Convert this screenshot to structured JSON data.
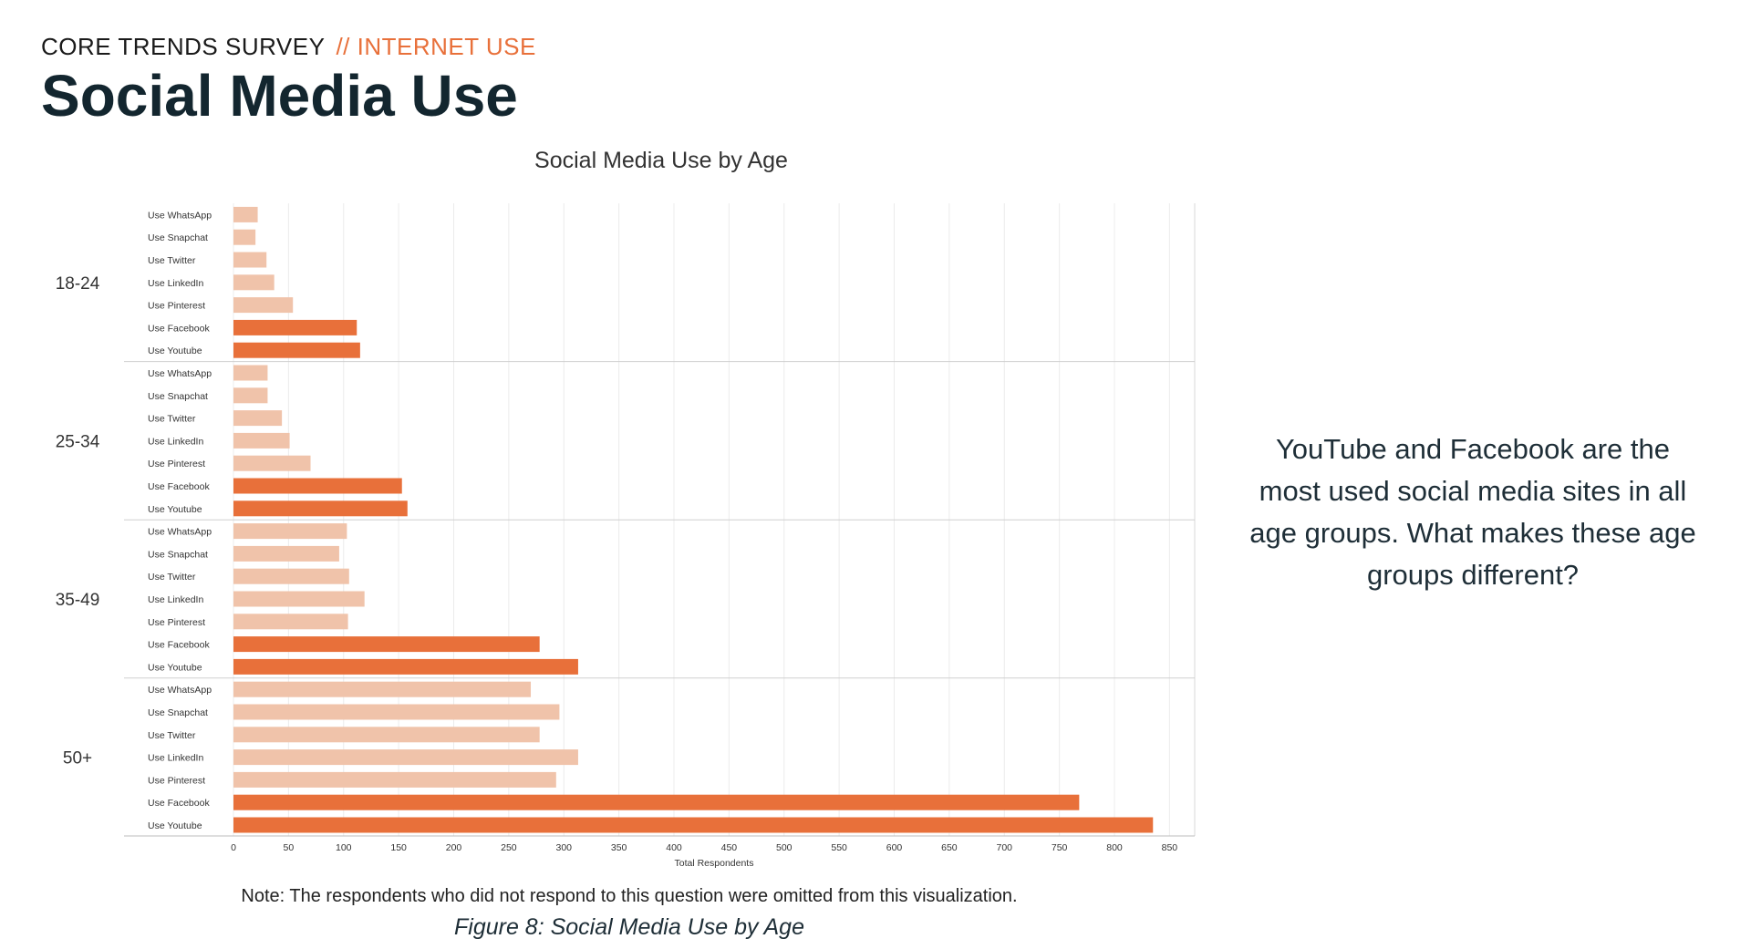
{
  "header": {
    "supertitle_main": "CORE TRENDS SURVEY",
    "supertitle_accent": "// INTERNET USE",
    "title": "Social Media Use"
  },
  "takeaway": "YouTube and Facebook are the most used social media sites in all age groups. What makes these age groups different?",
  "note": "Note: The respondents who did not respond to this question were omitted from this visualization.",
  "caption": "Figure 8: Social Media Use by Age",
  "colors": {
    "accent": "#e8703a",
    "light_bar": "#f0c3aa",
    "dark_text": "#13262f"
  },
  "chart_data": {
    "type": "bar",
    "orientation": "horizontal",
    "title": "Social Media Use by Age",
    "xlabel": "Total Respondents",
    "xlim": [
      0,
      875
    ],
    "xticks": [
      0,
      50,
      100,
      150,
      200,
      250,
      300,
      350,
      400,
      450,
      500,
      550,
      600,
      650,
      700,
      750,
      800,
      850
    ],
    "grid": true,
    "highlighted_categories": [
      "Use Facebook",
      "Use Youtube"
    ],
    "groups": [
      {
        "label": "18-24",
        "bars": [
          {
            "category": "Use WhatsApp",
            "value": 22
          },
          {
            "category": "Use Snapchat",
            "value": 20
          },
          {
            "category": "Use Twitter",
            "value": 30
          },
          {
            "category": "Use LinkedIn",
            "value": 37
          },
          {
            "category": "Use Pinterest",
            "value": 54
          },
          {
            "category": "Use Facebook",
            "value": 112
          },
          {
            "category": "Use Youtube",
            "value": 115
          }
        ]
      },
      {
        "label": "25-34",
        "bars": [
          {
            "category": "Use WhatsApp",
            "value": 31
          },
          {
            "category": "Use Snapchat",
            "value": 31
          },
          {
            "category": "Use Twitter",
            "value": 44
          },
          {
            "category": "Use LinkedIn",
            "value": 51
          },
          {
            "category": "Use Pinterest",
            "value": 70
          },
          {
            "category": "Use Facebook",
            "value": 153
          },
          {
            "category": "Use Youtube",
            "value": 158
          }
        ]
      },
      {
        "label": "35-49",
        "bars": [
          {
            "category": "Use WhatsApp",
            "value": 103
          },
          {
            "category": "Use Snapchat",
            "value": 96
          },
          {
            "category": "Use Twitter",
            "value": 105
          },
          {
            "category": "Use LinkedIn",
            "value": 119
          },
          {
            "category": "Use Pinterest",
            "value": 104
          },
          {
            "category": "Use Facebook",
            "value": 278
          },
          {
            "category": "Use Youtube",
            "value": 313
          }
        ]
      },
      {
        "label": "50+",
        "bars": [
          {
            "category": "Use WhatsApp",
            "value": 270
          },
          {
            "category": "Use Snapchat",
            "value": 296
          },
          {
            "category": "Use Twitter",
            "value": 278
          },
          {
            "category": "Use LinkedIn",
            "value": 313
          },
          {
            "category": "Use Pinterest",
            "value": 293
          },
          {
            "category": "Use Facebook",
            "value": 768
          },
          {
            "category": "Use Youtube",
            "value": 835
          }
        ]
      }
    ]
  }
}
